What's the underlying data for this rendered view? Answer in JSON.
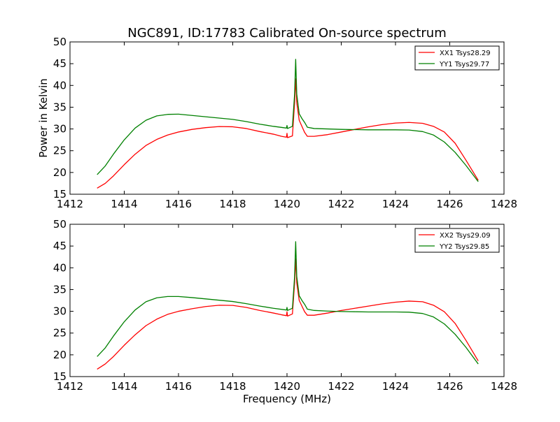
{
  "title": "NGC891, ID:17783 Calibrated On-source spectrum",
  "ylabel": "Power in Kelvin",
  "xlabel": "Frequency (MHz)",
  "chart_data": [
    {
      "type": "line",
      "xlim": [
        1412,
        1428
      ],
      "ylim": [
        15,
        50
      ],
      "xticks": [
        1412,
        1414,
        1416,
        1418,
        1420,
        1422,
        1424,
        1426,
        1428
      ],
      "yticks": [
        15,
        20,
        25,
        30,
        35,
        40,
        45,
        50
      ],
      "legend_position": "top-right",
      "series": [
        {
          "name": "XX1 Tsys28.29",
          "color": "#ff0000",
          "points": [
            [
              1413.0,
              16.4
            ],
            [
              1413.3,
              17.5
            ],
            [
              1413.6,
              19.2
            ],
            [
              1414.0,
              21.8
            ],
            [
              1414.4,
              24.2
            ],
            [
              1414.8,
              26.2
            ],
            [
              1415.2,
              27.6
            ],
            [
              1415.6,
              28.6
            ],
            [
              1416.0,
              29.3
            ],
            [
              1416.5,
              29.9
            ],
            [
              1417.0,
              30.3
            ],
            [
              1417.5,
              30.55
            ],
            [
              1418.0,
              30.5
            ],
            [
              1418.5,
              30.1
            ],
            [
              1419.0,
              29.4
            ],
            [
              1419.5,
              28.8
            ],
            [
              1419.8,
              28.3
            ],
            [
              1419.98,
              28.1
            ],
            [
              1420.0,
              29.0
            ],
            [
              1420.02,
              28.0
            ],
            [
              1420.2,
              28.4
            ],
            [
              1420.28,
              36.0
            ],
            [
              1420.32,
              41.5
            ],
            [
              1420.36,
              36.0
            ],
            [
              1420.45,
              32.0
            ],
            [
              1420.55,
              30.6
            ],
            [
              1420.65,
              29.2
            ],
            [
              1420.75,
              28.3
            ],
            [
              1421.0,
              28.3
            ],
            [
              1421.5,
              28.7
            ],
            [
              1422.0,
              29.3
            ],
            [
              1422.5,
              29.9
            ],
            [
              1423.0,
              30.5
            ],
            [
              1423.5,
              31.0
            ],
            [
              1424.0,
              31.35
            ],
            [
              1424.5,
              31.5
            ],
            [
              1425.0,
              31.3
            ],
            [
              1425.4,
              30.6
            ],
            [
              1425.8,
              29.3
            ],
            [
              1426.2,
              26.7
            ],
            [
              1426.6,
              22.8
            ],
            [
              1427.05,
              18.2
            ]
          ]
        },
        {
          "name": "YY1 Tsys29.77",
          "color": "#008000",
          "points": [
            [
              1413.0,
              19.5
            ],
            [
              1413.3,
              21.5
            ],
            [
              1413.6,
              24.2
            ],
            [
              1414.0,
              27.5
            ],
            [
              1414.4,
              30.2
            ],
            [
              1414.8,
              32.0
            ],
            [
              1415.2,
              33.0
            ],
            [
              1415.6,
              33.35
            ],
            [
              1416.0,
              33.4
            ],
            [
              1416.5,
              33.1
            ],
            [
              1417.0,
              32.8
            ],
            [
              1417.5,
              32.5
            ],
            [
              1418.0,
              32.2
            ],
            [
              1418.5,
              31.7
            ],
            [
              1419.0,
              31.1
            ],
            [
              1419.5,
              30.6
            ],
            [
              1419.98,
              30.2
            ],
            [
              1420.0,
              30.8
            ],
            [
              1420.02,
              30.1
            ],
            [
              1420.2,
              30.6
            ],
            [
              1420.28,
              38.0
            ],
            [
              1420.32,
              46.0
            ],
            [
              1420.36,
              38.0
            ],
            [
              1420.45,
              33.5
            ],
            [
              1420.55,
              32.4
            ],
            [
              1420.65,
              31.5
            ],
            [
              1420.75,
              30.4
            ],
            [
              1421.0,
              30.1
            ],
            [
              1421.5,
              30.0
            ],
            [
              1422.0,
              29.9
            ],
            [
              1422.5,
              29.85
            ],
            [
              1423.0,
              29.8
            ],
            [
              1423.5,
              29.8
            ],
            [
              1424.0,
              29.8
            ],
            [
              1424.5,
              29.75
            ],
            [
              1425.0,
              29.4
            ],
            [
              1425.4,
              28.6
            ],
            [
              1425.8,
              27.0
            ],
            [
              1426.2,
              24.6
            ],
            [
              1426.6,
              21.6
            ],
            [
              1427.05,
              17.9
            ]
          ]
        }
      ]
    },
    {
      "type": "line",
      "xlim": [
        1412,
        1428
      ],
      "ylim": [
        15,
        50
      ],
      "xticks": [
        1412,
        1414,
        1416,
        1418,
        1420,
        1422,
        1424,
        1426,
        1428
      ],
      "yticks": [
        15,
        20,
        25,
        30,
        35,
        40,
        45,
        50
      ],
      "legend_position": "top-right",
      "series": [
        {
          "name": "XX2 Tsys29.09",
          "color": "#ff0000",
          "points": [
            [
              1413.0,
              16.7
            ],
            [
              1413.3,
              17.9
            ],
            [
              1413.6,
              19.6
            ],
            [
              1414.0,
              22.2
            ],
            [
              1414.4,
              24.6
            ],
            [
              1414.8,
              26.7
            ],
            [
              1415.2,
              28.2
            ],
            [
              1415.6,
              29.3
            ],
            [
              1416.0,
              30.0
            ],
            [
              1416.5,
              30.6
            ],
            [
              1417.0,
              31.1
            ],
            [
              1417.5,
              31.4
            ],
            [
              1418.0,
              31.35
            ],
            [
              1418.5,
              30.9
            ],
            [
              1419.0,
              30.2
            ],
            [
              1419.5,
              29.6
            ],
            [
              1419.8,
              29.2
            ],
            [
              1419.98,
              29.0
            ],
            [
              1420.0,
              29.9
            ],
            [
              1420.02,
              28.9
            ],
            [
              1420.2,
              29.4
            ],
            [
              1420.28,
              36.5
            ],
            [
              1420.32,
              42.0
            ],
            [
              1420.36,
              36.5
            ],
            [
              1420.45,
              32.5
            ],
            [
              1420.55,
              31.2
            ],
            [
              1420.65,
              29.9
            ],
            [
              1420.75,
              29.1
            ],
            [
              1421.0,
              29.1
            ],
            [
              1421.5,
              29.6
            ],
            [
              1422.0,
              30.2
            ],
            [
              1422.5,
              30.7
            ],
            [
              1423.0,
              31.2
            ],
            [
              1423.5,
              31.7
            ],
            [
              1424.0,
              32.1
            ],
            [
              1424.5,
              32.35
            ],
            [
              1425.0,
              32.2
            ],
            [
              1425.4,
              31.4
            ],
            [
              1425.8,
              29.9
            ],
            [
              1426.2,
              27.2
            ],
            [
              1426.6,
              23.3
            ],
            [
              1427.05,
              18.6
            ]
          ]
        },
        {
          "name": "YY2 Tsys29.85",
          "color": "#008000",
          "points": [
            [
              1413.0,
              19.6
            ],
            [
              1413.3,
              21.6
            ],
            [
              1413.6,
              24.3
            ],
            [
              1414.0,
              27.6
            ],
            [
              1414.4,
              30.3
            ],
            [
              1414.8,
              32.2
            ],
            [
              1415.2,
              33.1
            ],
            [
              1415.6,
              33.4
            ],
            [
              1416.0,
              33.4
            ],
            [
              1416.5,
              33.15
            ],
            [
              1417.0,
              32.85
            ],
            [
              1417.5,
              32.55
            ],
            [
              1418.0,
              32.25
            ],
            [
              1418.5,
              31.75
            ],
            [
              1419.0,
              31.2
            ],
            [
              1419.5,
              30.7
            ],
            [
              1419.98,
              30.3
            ],
            [
              1420.0,
              30.9
            ],
            [
              1420.02,
              30.2
            ],
            [
              1420.2,
              30.7
            ],
            [
              1420.28,
              38.0
            ],
            [
              1420.32,
              46.0
            ],
            [
              1420.36,
              38.0
            ],
            [
              1420.45,
              33.6
            ],
            [
              1420.55,
              32.5
            ],
            [
              1420.65,
              31.6
            ],
            [
              1420.75,
              30.5
            ],
            [
              1421.0,
              30.2
            ],
            [
              1421.5,
              30.05
            ],
            [
              1422.0,
              29.95
            ],
            [
              1422.5,
              29.9
            ],
            [
              1423.0,
              29.85
            ],
            [
              1423.5,
              29.85
            ],
            [
              1424.0,
              29.85
            ],
            [
              1424.5,
              29.8
            ],
            [
              1425.0,
              29.5
            ],
            [
              1425.4,
              28.7
            ],
            [
              1425.8,
              27.1
            ],
            [
              1426.2,
              24.7
            ],
            [
              1426.6,
              21.7
            ],
            [
              1427.05,
              17.9
            ]
          ]
        }
      ]
    }
  ]
}
